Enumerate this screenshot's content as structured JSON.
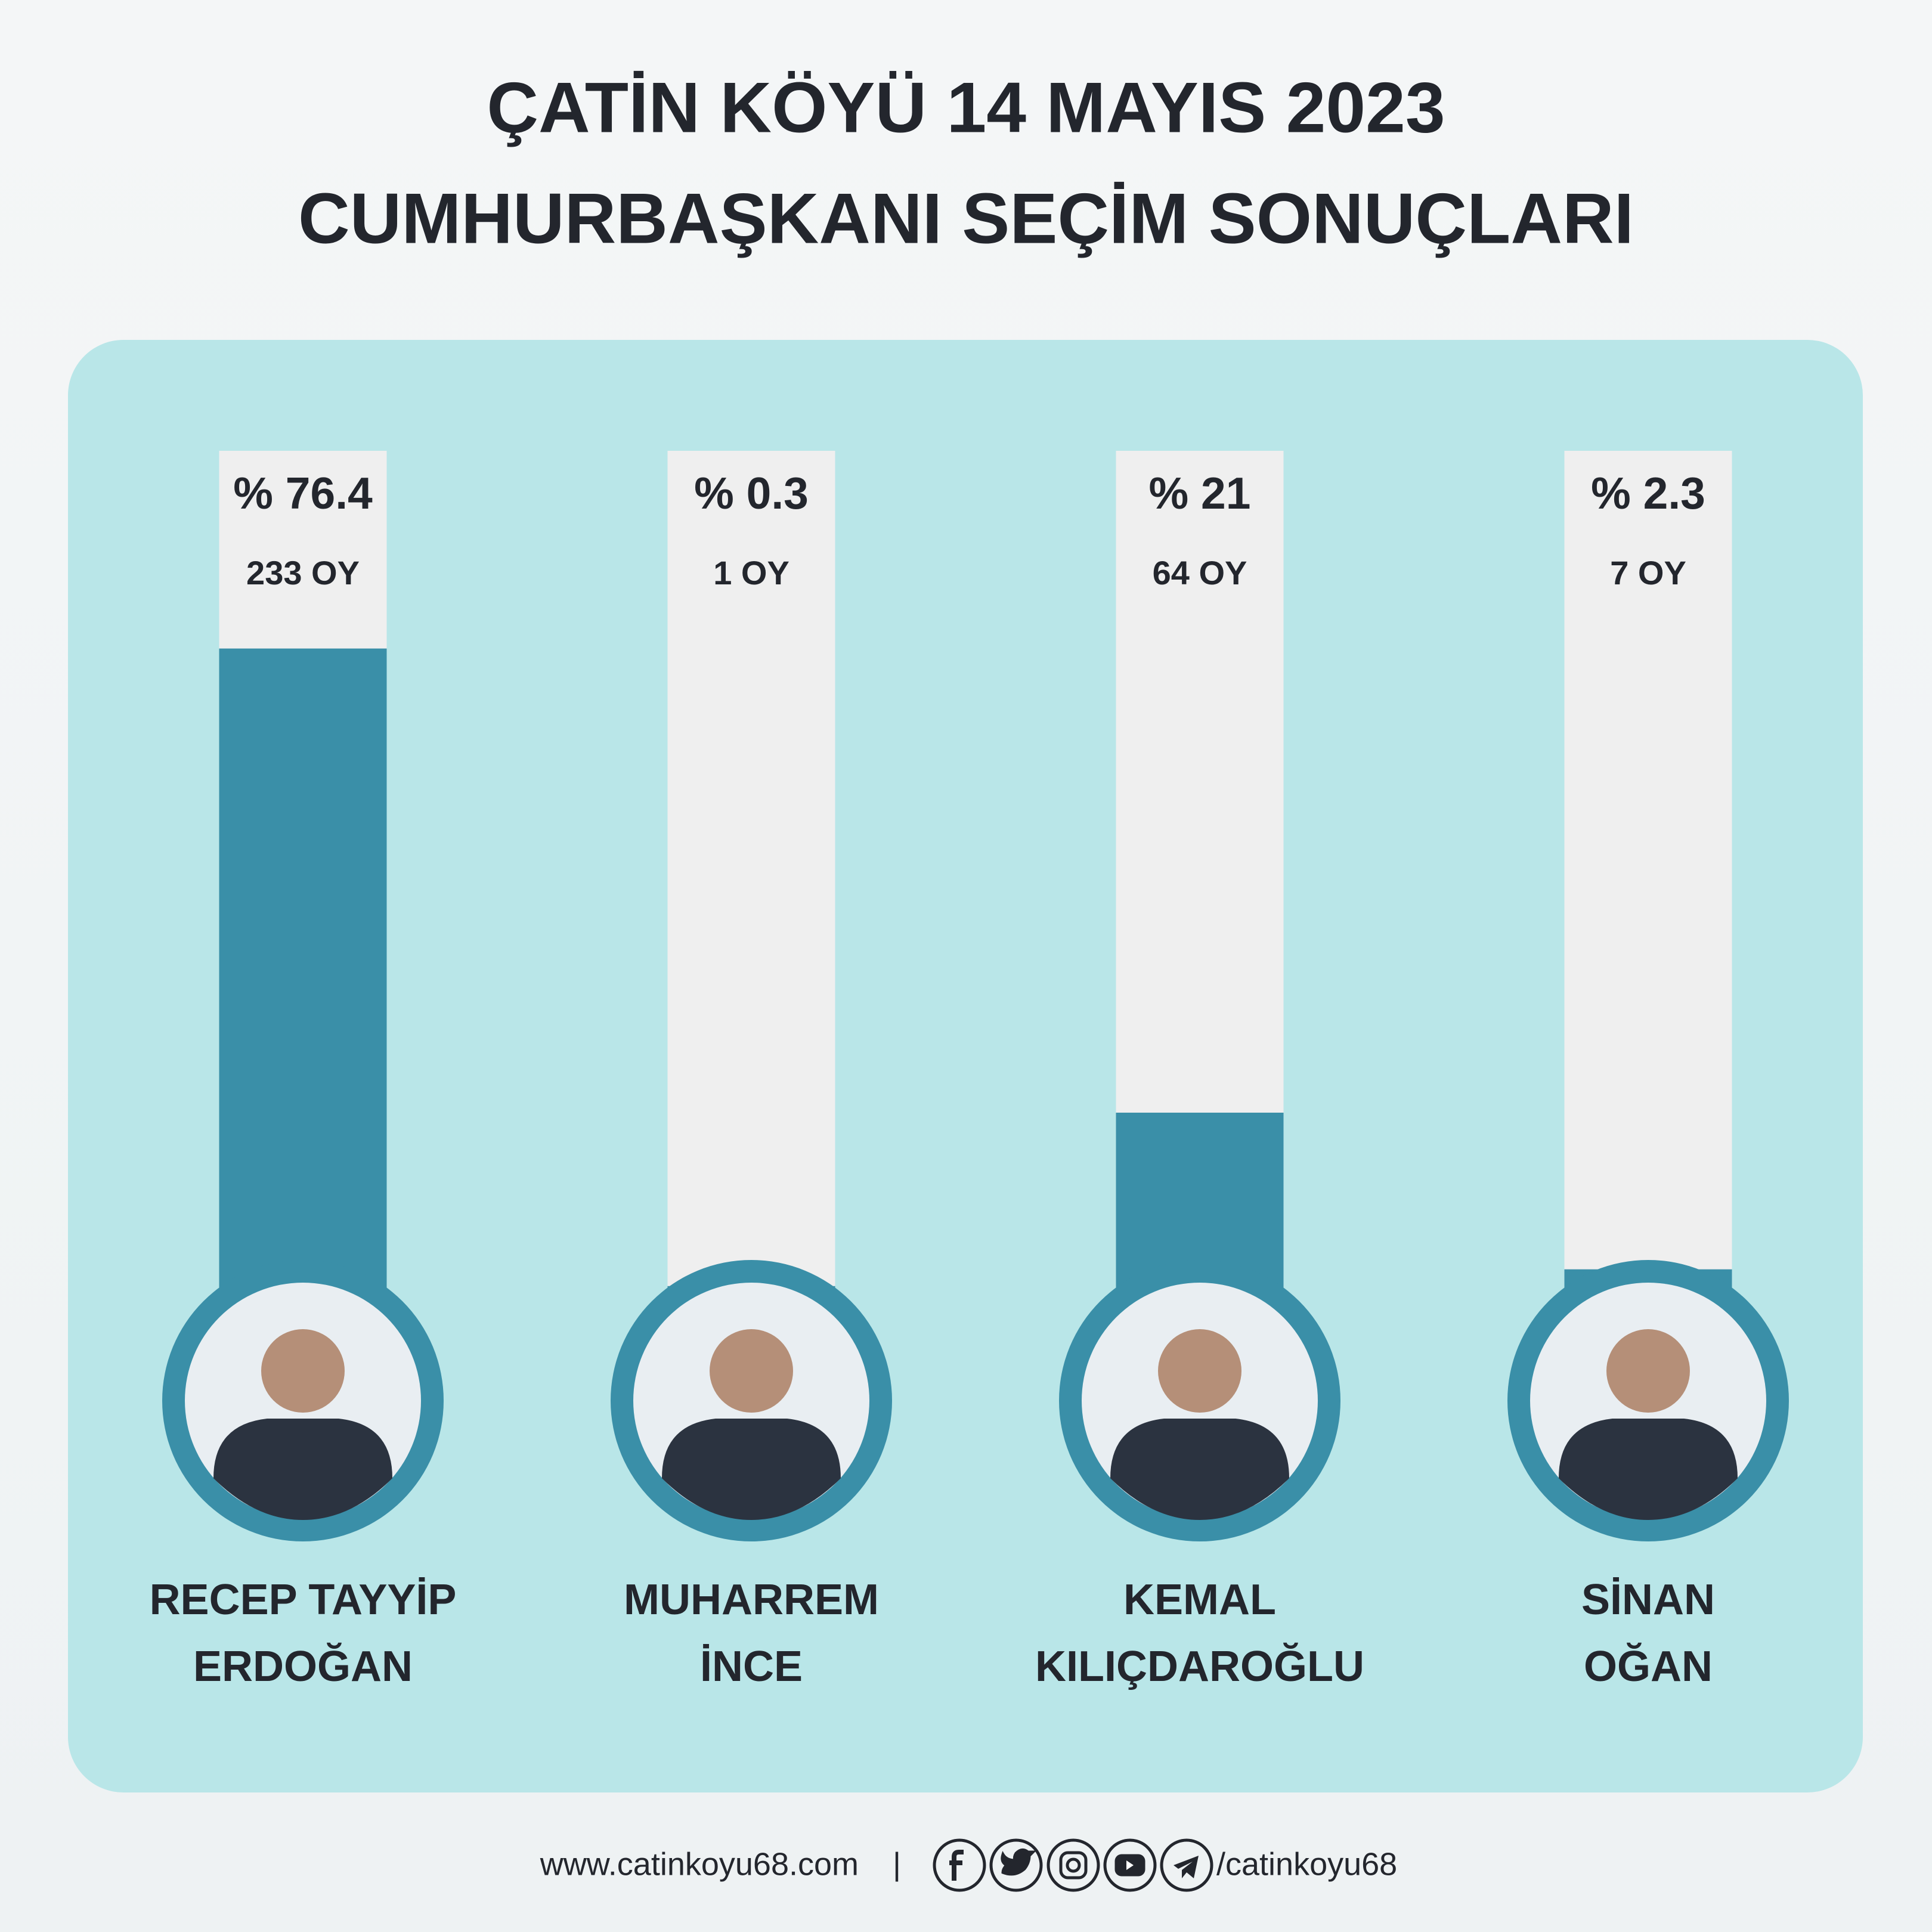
{
  "chart_data": {
    "type": "bar",
    "title": "ÇATİN KÖYÜ 14 MAYIS 2023",
    "subtitle": "CUMHURBAŞKANI SEÇİM SONUÇLARI",
    "categories": [
      [
        "RECEP TAYYİP",
        "ERDOĞAN"
      ],
      [
        "MUHARREM",
        "İNCE"
      ],
      [
        "KEMAL",
        "KILIÇDAROĞLU"
      ],
      [
        "SİNAN",
        "OĞAN"
      ]
    ],
    "values": [
      76.4,
      0.3,
      21,
      2.3
    ],
    "value_labels": [
      "% 76.4",
      "% 0.3",
      "% 21",
      "% 2.3"
    ],
    "votes": [
      233,
      1,
      64,
      7
    ],
    "vote_labels": [
      "233 OY",
      "1 OY",
      "64 OY",
      "7 OY"
    ],
    "ylim": [
      0,
      100
    ],
    "color": "#3a8fa8"
  },
  "footer": {
    "website": "www.catinkoyu68.com",
    "separator": "|",
    "handle": "/catinkoyu68"
  }
}
